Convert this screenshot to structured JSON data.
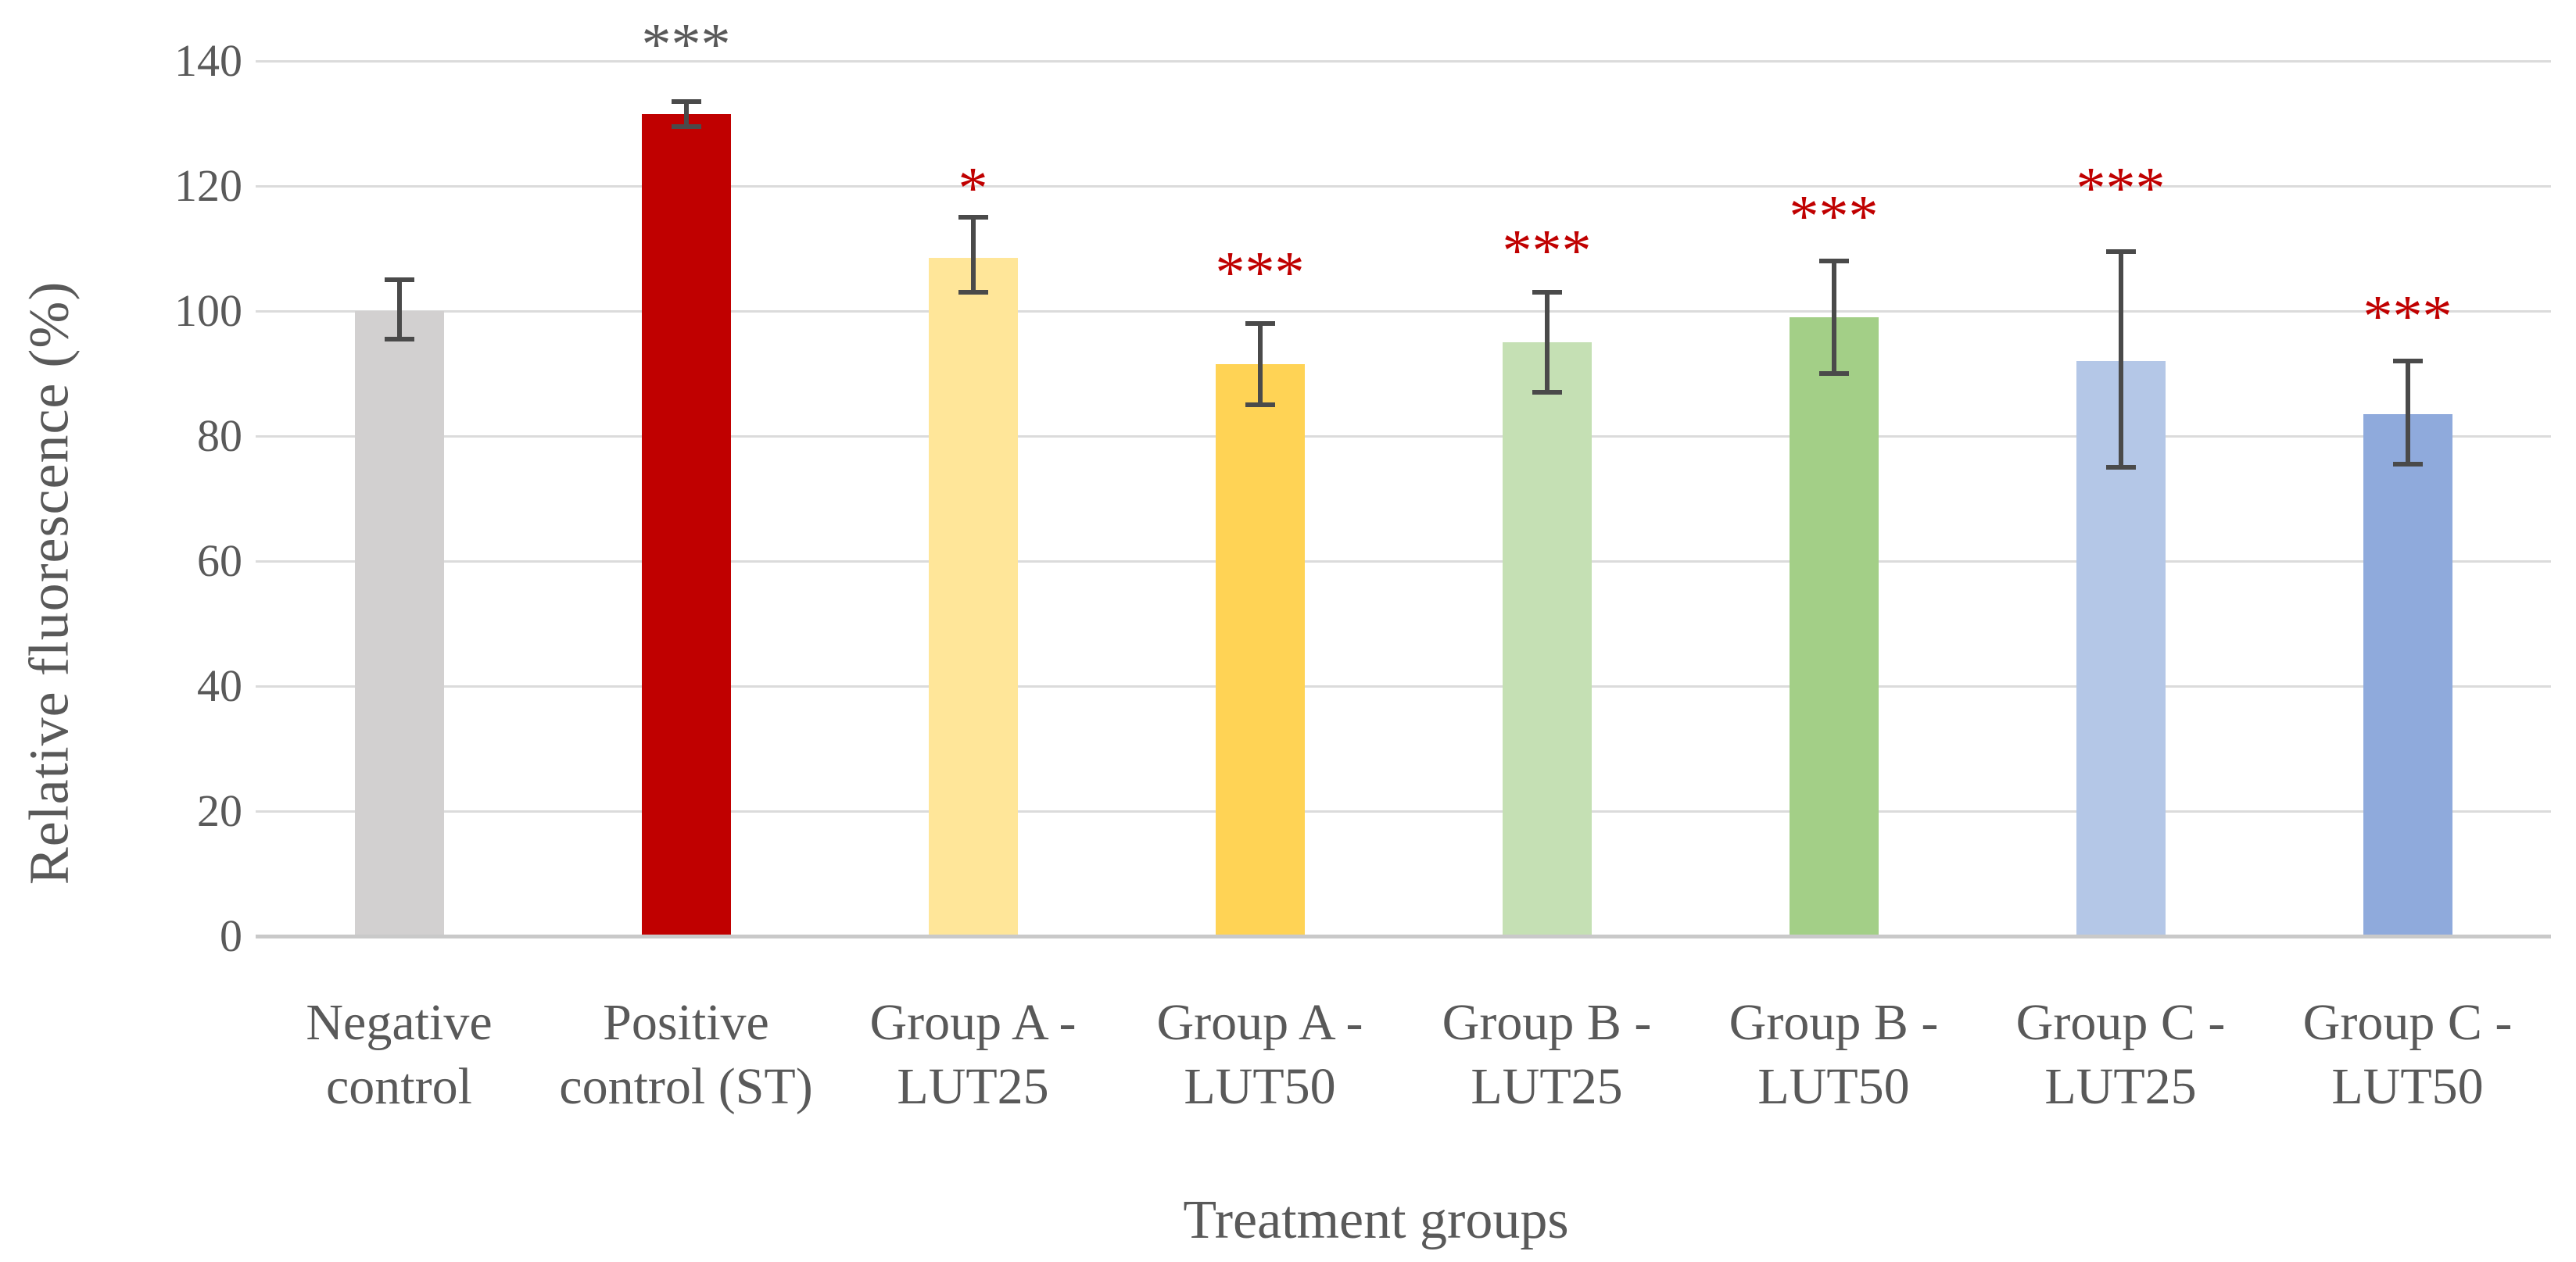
{
  "chart_data": {
    "type": "bar",
    "title": "",
    "xlabel": "Treatment groups",
    "ylabel": "Relative fluorescence (%)",
    "ylim": [
      0,
      140
    ],
    "yticks": [
      140,
      120,
      100,
      80,
      60,
      40,
      20,
      0
    ],
    "grid": true,
    "legend": false,
    "categories": [
      "Negative control",
      "Positive control (ST)",
      "Group A - LUT25",
      "Group A - LUT50",
      "Group B - LUT25",
      "Group B - LUT50",
      "Group C - LUT25",
      "Group C - LUT50"
    ],
    "category_lines": [
      [
        "Negative",
        "control"
      ],
      [
        "Positive",
        "control (ST)"
      ],
      [
        "Group A -",
        "LUT25"
      ],
      [
        "Group A -",
        "LUT50"
      ],
      [
        "Group B -",
        "LUT25"
      ],
      [
        "Group B -",
        "LUT50"
      ],
      [
        "Group C -",
        "LUT25"
      ],
      [
        "Group C -",
        "LUT50"
      ]
    ],
    "values": [
      100,
      131.5,
      108.5,
      91.5,
      95,
      99,
      92,
      83.5
    ],
    "error_low": [
      95.5,
      129.5,
      103,
      85,
      87,
      90,
      75,
      75.5
    ],
    "error_high": [
      105,
      133.5,
      115,
      98,
      103,
      108,
      109.5,
      92
    ],
    "bar_colors": [
      "#D2D0D0",
      "#C00000",
      "#FFE699",
      "#FFD355",
      "#C5E0B4",
      "#A3CF87",
      "#B4C7E7",
      "#8FAADC"
    ],
    "significance": [
      "",
      "***",
      "*",
      "***",
      "***",
      "***",
      "***",
      "***"
    ],
    "significance_colors": [
      "",
      "#595959",
      "#C00000",
      "#C00000",
      "#C00000",
      "#C00000",
      "#C00000",
      "#C00000"
    ],
    "significance_y": [
      null,
      144,
      121,
      107.5,
      111,
      116.5,
      121,
      100.5
    ],
    "colors": {
      "gridline": "#dbdbdb",
      "axis_line": "#c9c9c9",
      "error_bar": "#4a4a4a",
      "text": "#595959"
    }
  }
}
